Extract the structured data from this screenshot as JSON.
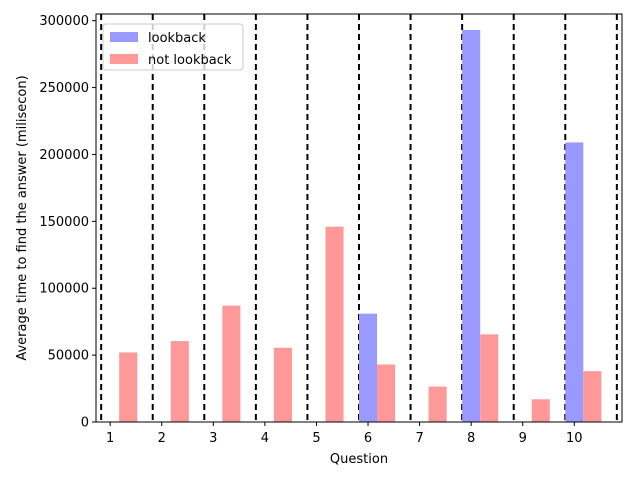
{
  "chart_data": {
    "type": "bar",
    "xlabel": "Question",
    "ylabel": "Average time to find the answer (milisecon)",
    "categories": [
      "1",
      "2",
      "3",
      "4",
      "5",
      "6",
      "7",
      "8",
      "9",
      "10"
    ],
    "series": [
      {
        "name": "lookback",
        "color": "#9999ff",
        "values": [
          0,
          0,
          0,
          0,
          0,
          81000,
          0,
          293000,
          0,
          209000
        ]
      },
      {
        "name": "not lookback",
        "color": "#ff9999",
        "values": [
          52000,
          60500,
          87000,
          55500,
          146000,
          43000,
          26500,
          65500,
          17000,
          38000
        ]
      }
    ],
    "ylim": [
      0,
      305000
    ],
    "yticks": [
      0,
      50000,
      100000,
      150000,
      200000,
      250000,
      300000
    ],
    "ytick_labels": [
      "0",
      "50000",
      "100000",
      "150000",
      "200000",
      "250000",
      "300000"
    ],
    "separators": "dashed vertical lines between questions",
    "grid": false,
    "legend_position": "top-left"
  }
}
